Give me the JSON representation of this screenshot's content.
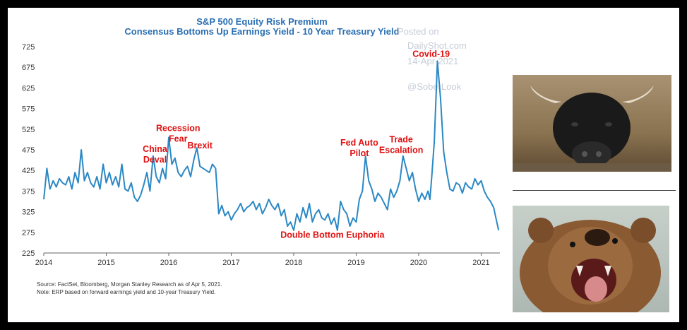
{
  "chart_data": {
    "type": "line",
    "title": "S&P 500 Equity Risk Premium",
    "subtitle": "Consensus Bottoms Up Earnings Yield - 10 Year Treasury Yield",
    "xlabel": "",
    "ylabel": "",
    "xlim": [
      2014.0,
      2021.3
    ],
    "ylim": [
      225,
      725
    ],
    "yticks": [
      "725",
      "675",
      "625",
      "575",
      "525",
      "475",
      "425",
      "375",
      "325",
      "275",
      "225"
    ],
    "xticks": [
      "2014",
      "2015",
      "2016",
      "2017",
      "2018",
      "2019",
      "2020",
      "2021"
    ],
    "grid": false,
    "line_color": "#2b88c4",
    "annotation_color": "#e01010",
    "series": [
      {
        "name": "",
        "x": [
          2014.0,
          2014.05,
          2014.1,
          2014.15,
          2014.2,
          2014.25,
          2014.3,
          2014.35,
          2014.4,
          2014.45,
          2014.5,
          2014.55,
          2014.6,
          2014.65,
          2014.7,
          2014.75,
          2014.8,
          2014.85,
          2014.9,
          2014.95,
          2015.0,
          2015.05,
          2015.1,
          2015.15,
          2015.2,
          2015.25,
          2015.3,
          2015.35,
          2015.4,
          2015.45,
          2015.5,
          2015.55,
          2015.6,
          2015.65,
          2015.7,
          2015.75,
          2015.8,
          2015.85,
          2015.9,
          2015.95,
          2016.0,
          2016.05,
          2016.1,
          2016.15,
          2016.2,
          2016.25,
          2016.3,
          2016.35,
          2016.4,
          2016.45,
          2016.5,
          2016.55,
          2016.6,
          2016.65,
          2016.7,
          2016.75,
          2016.8,
          2016.85,
          2016.9,
          2016.95,
          2017.0,
          2017.05,
          2017.1,
          2017.15,
          2017.2,
          2017.25,
          2017.3,
          2017.35,
          2017.4,
          2017.45,
          2017.5,
          2017.55,
          2017.6,
          2017.65,
          2017.7,
          2017.75,
          2017.8,
          2017.85,
          2017.9,
          2017.95,
          2018.0,
          2018.05,
          2018.1,
          2018.15,
          2018.2,
          2018.25,
          2018.3,
          2018.35,
          2018.4,
          2018.45,
          2018.5,
          2018.55,
          2018.6,
          2018.65,
          2018.7,
          2018.75,
          2018.8,
          2018.85,
          2018.9,
          2018.95,
          2019.0,
          2019.05,
          2019.1,
          2019.15,
          2019.2,
          2019.25,
          2019.3,
          2019.35,
          2019.4,
          2019.45,
          2019.5,
          2019.55,
          2019.6,
          2019.65,
          2019.7,
          2019.75,
          2019.8,
          2019.85,
          2019.9,
          2019.95,
          2020.0,
          2020.05,
          2020.1,
          2020.15,
          2020.18,
          2020.21,
          2020.25,
          2020.3,
          2020.35,
          2020.4,
          2020.45,
          2020.5,
          2020.55,
          2020.6,
          2020.65,
          2020.7,
          2020.75,
          2020.8,
          2020.85,
          2020.9,
          2020.95,
          2021.0,
          2021.05,
          2021.1,
          2021.15,
          2021.2,
          2021.25,
          2021.28
        ],
        "values": [
          355,
          430,
          380,
          400,
          385,
          405,
          395,
          390,
          410,
          380,
          420,
          395,
          475,
          400,
          420,
          395,
          385,
          410,
          380,
          440,
          395,
          420,
          390,
          410,
          385,
          440,
          380,
          375,
          395,
          360,
          350,
          365,
          390,
          420,
          375,
          460,
          410,
          395,
          430,
          405,
          505,
          440,
          455,
          420,
          410,
          425,
          435,
          410,
          450,
          480,
          435,
          430,
          425,
          420,
          440,
          430,
          320,
          340,
          315,
          325,
          305,
          320,
          330,
          345,
          325,
          335,
          340,
          350,
          330,
          345,
          320,
          335,
          355,
          340,
          330,
          345,
          315,
          330,
          290,
          300,
          280,
          320,
          300,
          335,
          310,
          345,
          300,
          320,
          330,
          310,
          305,
          320,
          295,
          310,
          280,
          350,
          330,
          320,
          290,
          310,
          300,
          355,
          375,
          460,
          400,
          380,
          350,
          370,
          360,
          345,
          330,
          380,
          360,
          375,
          400,
          460,
          430,
          400,
          420,
          380,
          350,
          370,
          355,
          375,
          355,
          410,
          495,
          690,
          600,
          470,
          420,
          380,
          375,
          395,
          390,
          370,
          395,
          385,
          380,
          405,
          390,
          400,
          375,
          360,
          350,
          335,
          300,
          280
        ]
      }
    ],
    "annotations": [
      {
        "lines": [
          "China",
          "Deval"
        ],
        "x": 2015.78,
        "y": 470
      },
      {
        "lines": [
          "Recession",
          "Fear"
        ],
        "x": 2016.15,
        "y": 520
      },
      {
        "lines": [
          "Brexit"
        ],
        "x": 2016.5,
        "y": 478
      },
      {
        "lines": [
          "Fed Auto",
          "Pilot"
        ],
        "x": 2019.05,
        "y": 485
      },
      {
        "lines": [
          "Trade",
          "Escalation"
        ],
        "x": 2019.72,
        "y": 493
      },
      {
        "lines": [
          "Covid-19"
        ],
        "x": 2020.2,
        "y": 700
      },
      {
        "lines": [
          "Double Bottom Euphoria"
        ],
        "x": 2018.62,
        "y": 262
      }
    ],
    "watermark": [
      "Posted on",
      "DailyShot.com",
      "14-Apr-2021",
      "@SoberLook"
    ],
    "source_lines": [
      "Source: FactSet, Bloomberg, Morgan Stanley Research as of Apr 5, 2021.",
      "Note: ERP based on forward earnings yield and 10-year Treasury Yield."
    ]
  },
  "images": {
    "bull": "bull-photo",
    "bear": "bear-photo"
  }
}
